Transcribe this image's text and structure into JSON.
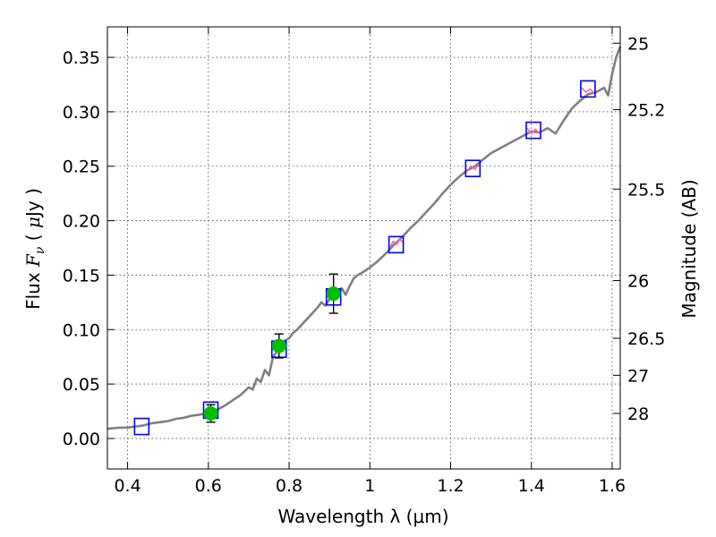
{
  "chart_data": {
    "type": "scatter",
    "xlabel": "Wavelength  λ (μm)",
    "ylabel_parts": [
      "Flux ",
      "F",
      "ν",
      "  ( ",
      "μ",
      "Jy )"
    ],
    "y2label": "Magnitude (AB)",
    "xlim": [
      0.35,
      1.62
    ],
    "ylim": [
      -0.028,
      0.378
    ],
    "grid": true,
    "x_ticks": [
      {
        "value": 0.4,
        "label": "0.4"
      },
      {
        "value": 0.6,
        "label": "0.6"
      },
      {
        "value": 0.8,
        "label": "0.8"
      },
      {
        "value": 1.0,
        "label": "1"
      },
      {
        "value": 1.2,
        "label": "1.2"
      },
      {
        "value": 1.4,
        "label": "1.4"
      },
      {
        "value": 1.6,
        "label": "1.6"
      }
    ],
    "y_ticks": [
      {
        "value": 0.0,
        "label": "0.00"
      },
      {
        "value": 0.05,
        "label": "0.05"
      },
      {
        "value": 0.1,
        "label": "0.10"
      },
      {
        "value": 0.15,
        "label": "0.15"
      },
      {
        "value": 0.2,
        "label": "0.20"
      },
      {
        "value": 0.25,
        "label": "0.25"
      },
      {
        "value": 0.3,
        "label": "0.30"
      },
      {
        "value": 0.35,
        "label": "0.35"
      }
    ],
    "y2_ticks": [
      {
        "flux": 0.363,
        "label": "25"
      },
      {
        "flux": 0.302,
        "label": "25.2"
      },
      {
        "flux": 0.229,
        "label": "25.5"
      },
      {
        "flux": 0.145,
        "label": "26"
      },
      {
        "flux": 0.092,
        "label": "26.5"
      },
      {
        "flux": 0.058,
        "label": "27"
      },
      {
        "flux": 0.023,
        "label": "28"
      }
    ],
    "model_spectrum": [
      [
        0.35,
        0.009
      ],
      [
        0.38,
        0.01
      ],
      [
        0.4,
        0.01
      ],
      [
        0.42,
        0.011
      ],
      [
        0.44,
        0.012
      ],
      [
        0.46,
        0.014
      ],
      [
        0.48,
        0.015
      ],
      [
        0.5,
        0.016
      ],
      [
        0.52,
        0.018
      ],
      [
        0.54,
        0.019
      ],
      [
        0.56,
        0.021
      ],
      [
        0.58,
        0.022
      ],
      [
        0.6,
        0.024
      ],
      [
        0.62,
        0.026
      ],
      [
        0.64,
        0.03
      ],
      [
        0.66,
        0.035
      ],
      [
        0.68,
        0.04
      ],
      [
        0.7,
        0.047
      ],
      [
        0.71,
        0.045
      ],
      [
        0.72,
        0.055
      ],
      [
        0.73,
        0.052
      ],
      [
        0.74,
        0.063
      ],
      [
        0.75,
        0.058
      ],
      [
        0.76,
        0.075
      ],
      [
        0.77,
        0.08
      ],
      [
        0.78,
        0.083
      ],
      [
        0.79,
        0.09
      ],
      [
        0.8,
        0.092
      ],
      [
        0.81,
        0.097
      ],
      [
        0.82,
        0.1
      ],
      [
        0.83,
        0.104
      ],
      [
        0.84,
        0.108
      ],
      [
        0.85,
        0.112
      ],
      [
        0.86,
        0.116
      ],
      [
        0.87,
        0.12
      ],
      [
        0.88,
        0.125
      ],
      [
        0.89,
        0.122
      ],
      [
        0.9,
        0.128
      ],
      [
        0.91,
        0.131
      ],
      [
        0.92,
        0.135
      ],
      [
        0.93,
        0.138
      ],
      [
        0.94,
        0.132
      ],
      [
        0.95,
        0.14
      ],
      [
        0.96,
        0.147
      ],
      [
        0.97,
        0.15
      ],
      [
        0.98,
        0.152
      ],
      [
        1.0,
        0.157
      ],
      [
        1.02,
        0.163
      ],
      [
        1.04,
        0.17
      ],
      [
        1.06,
        0.178
      ],
      [
        1.08,
        0.185
      ],
      [
        1.1,
        0.193
      ],
      [
        1.12,
        0.2
      ],
      [
        1.14,
        0.208
      ],
      [
        1.16,
        0.216
      ],
      [
        1.18,
        0.225
      ],
      [
        1.2,
        0.233
      ],
      [
        1.22,
        0.24
      ],
      [
        1.24,
        0.246
      ],
      [
        1.26,
        0.25
      ],
      [
        1.28,
        0.256
      ],
      [
        1.3,
        0.262
      ],
      [
        1.32,
        0.266
      ],
      [
        1.34,
        0.27
      ],
      [
        1.36,
        0.274
      ],
      [
        1.38,
        0.278
      ],
      [
        1.4,
        0.282
      ],
      [
        1.42,
        0.281
      ],
      [
        1.44,
        0.285
      ],
      [
        1.46,
        0.28
      ],
      [
        1.48,
        0.292
      ],
      [
        1.5,
        0.303
      ],
      [
        1.52,
        0.31
      ],
      [
        1.54,
        0.316
      ],
      [
        1.56,
        0.318
      ],
      [
        1.58,
        0.322
      ],
      [
        1.59,
        0.315
      ],
      [
        1.6,
        0.335
      ],
      [
        1.61,
        0.35
      ],
      [
        1.62,
        0.36
      ]
    ],
    "model_photometry": [
      {
        "x": 0.435,
        "y": 0.011
      },
      {
        "x": 0.606,
        "y": 0.026
      },
      {
        "x": 0.775,
        "y": 0.082
      },
      {
        "x": 0.91,
        "y": 0.13
      },
      {
        "x": 1.065,
        "y": 0.178
      },
      {
        "x": 1.255,
        "y": 0.248
      },
      {
        "x": 1.405,
        "y": 0.283
      },
      {
        "x": 1.54,
        "y": 0.321
      }
    ],
    "observed": [
      {
        "x": 0.606,
        "y": 0.023,
        "err": 0.008
      },
      {
        "x": 0.775,
        "y": 0.085,
        "err": 0.011
      },
      {
        "x": 0.91,
        "y": 0.133,
        "err": 0.018
      }
    ],
    "nir_segments": [
      {
        "x": [
          1.05,
          1.058,
          1.066,
          1.074,
          1.082
        ],
        "y": [
          0.176,
          0.181,
          0.178,
          0.183,
          0.18
        ]
      },
      {
        "x": [
          1.24,
          1.25,
          1.26,
          1.27
        ],
        "y": [
          0.245,
          0.25,
          0.247,
          0.252
        ]
      },
      {
        "x": [
          1.39,
          1.4,
          1.41,
          1.42
        ],
        "y": [
          0.285,
          0.28,
          0.284,
          0.28
        ]
      },
      {
        "x": [
          1.525,
          1.535,
          1.545,
          1.555
        ],
        "y": [
          0.322,
          0.318,
          0.321,
          0.317
        ]
      }
    ],
    "colors": {
      "spectrum": "#808080",
      "model_box": "#0000ff",
      "observed": "#00bf00",
      "nir": "#ff66a0"
    }
  }
}
